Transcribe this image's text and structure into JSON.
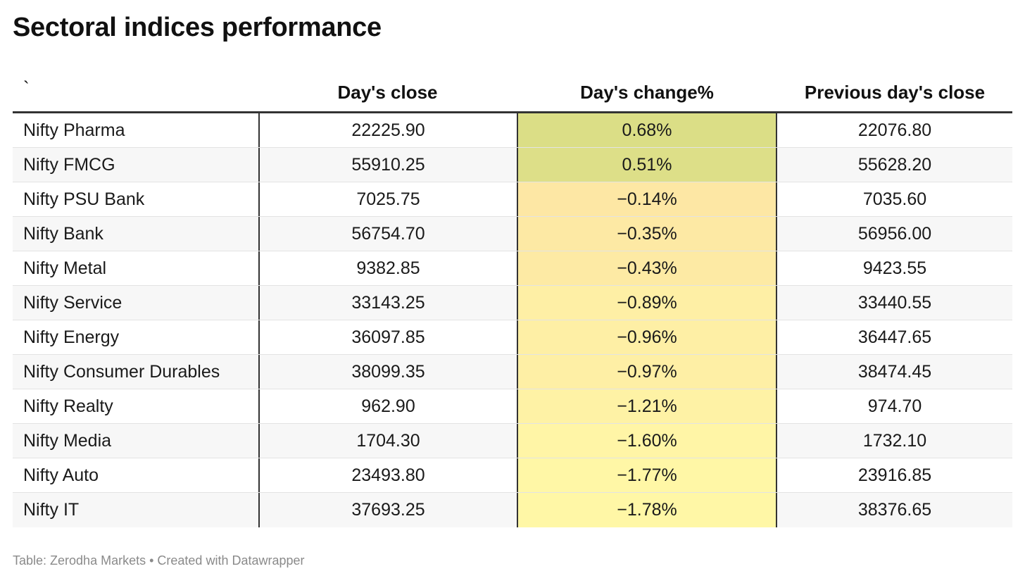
{
  "title": "Sectoral indices performance",
  "footer": {
    "source_text": "Table: Zerodha Markets",
    "separator": " • ",
    "credit_text": "Created with Datawrapper"
  },
  "colors": {
    "positive_high": "#dbde86",
    "positive_low": "#e3e08f",
    "negative_low": "#fde6a4",
    "negative_high": "#fff7a6"
  },
  "chart_data": {
    "type": "table",
    "title": "Sectoral indices performance",
    "columns": [
      "`",
      "Day's close",
      "Day's change%",
      "Previous day's close"
    ],
    "rows": [
      {
        "name": "Nifty Pharma",
        "close": "22225.90",
        "change": "0.68%",
        "prev": "22076.80",
        "change_value": 0.68
      },
      {
        "name": "Nifty FMCG",
        "close": "55910.25",
        "change": "0.51%",
        "prev": "55628.20",
        "change_value": 0.51
      },
      {
        "name": "Nifty PSU Bank",
        "close": "7025.75",
        "change": "−0.14%",
        "prev": "7035.60",
        "change_value": -0.14
      },
      {
        "name": "Nifty Bank",
        "close": "56754.70",
        "change": "−0.35%",
        "prev": "56956.00",
        "change_value": -0.35
      },
      {
        "name": "Nifty Metal",
        "close": "9382.85",
        "change": "−0.43%",
        "prev": "9423.55",
        "change_value": -0.43
      },
      {
        "name": "Nifty Service",
        "close": "33143.25",
        "change": "−0.89%",
        "prev": "33440.55",
        "change_value": -0.89
      },
      {
        "name": "Nifty Energy",
        "close": "36097.85",
        "change": "−0.96%",
        "prev": "36447.65",
        "change_value": -0.96
      },
      {
        "name": "Nifty Consumer Durables",
        "close": "38099.35",
        "change": "−0.97%",
        "prev": "38474.45",
        "change_value": -0.97
      },
      {
        "name": "Nifty Realty",
        "close": "962.90",
        "change": "−1.21%",
        "prev": "974.70",
        "change_value": -1.21
      },
      {
        "name": "Nifty Media",
        "close": "1704.30",
        "change": "−1.60%",
        "prev": "1732.10",
        "change_value": -1.6
      },
      {
        "name": "Nifty Auto",
        "close": "23493.80",
        "change": "−1.77%",
        "prev": "23916.85",
        "change_value": -1.77
      },
      {
        "name": "Nifty IT",
        "close": "37693.25",
        "change": "−1.78%",
        "prev": "38376.65",
        "change_value": -1.78
      }
    ]
  }
}
